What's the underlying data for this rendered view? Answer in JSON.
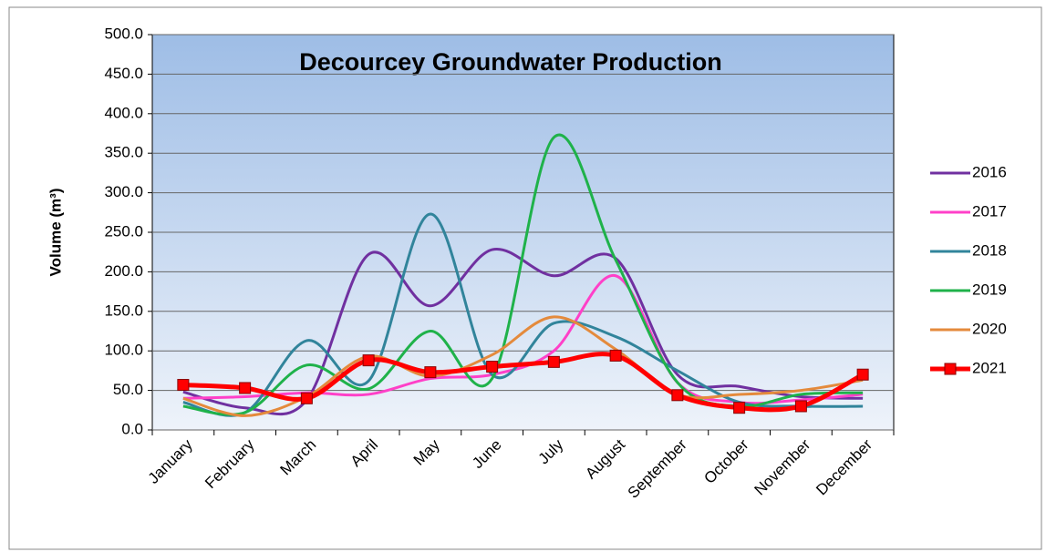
{
  "chart_data": {
    "type": "line",
    "title": "Decourcey Groundwater Production",
    "y_label": "Volume (m³)",
    "categories": [
      "January",
      "February",
      "March",
      "April",
      "May",
      "June",
      "July",
      "August",
      "September",
      "October",
      "November",
      "December"
    ],
    "series": [
      {
        "name": "2016",
        "color": "#7030a0",
        "values": [
          48,
          28,
          38,
          222,
          157,
          228,
          195,
          217,
          70,
          55,
          42,
          40
        ]
      },
      {
        "name": "2017",
        "color": "#ff40c8",
        "values": [
          40,
          42,
          47,
          45,
          65,
          70,
          100,
          195,
          60,
          35,
          38,
          45
        ]
      },
      {
        "name": "2018",
        "color": "#31849b",
        "values": [
          35,
          22,
          113,
          62,
          273,
          70,
          135,
          118,
          75,
          35,
          30,
          30
        ]
      },
      {
        "name": "2019",
        "color": "#1fb24a",
        "values": [
          30,
          22,
          82,
          52,
          125,
          65,
          370,
          215,
          60,
          30,
          45,
          47
        ]
      },
      {
        "name": "2020",
        "color": "#e48a3c",
        "values": [
          40,
          18,
          42,
          93,
          68,
          95,
          143,
          102,
          45,
          45,
          50,
          63
        ]
      },
      {
        "name": "2021",
        "color": "#ff0000",
        "marker": "square",
        "values": [
          57,
          53,
          40,
          88,
          73,
          80,
          86,
          94,
          44,
          28,
          30,
          70
        ]
      }
    ],
    "ylim": [
      0,
      500
    ],
    "yticks": [
      {
        "value": 0,
        "label": "0.0"
      },
      {
        "value": 50,
        "label": "50.0"
      },
      {
        "value": 100,
        "label": "100.0"
      },
      {
        "value": 150,
        "label": "150.0"
      },
      {
        "value": 200,
        "label": "200.0"
      },
      {
        "value": 250,
        "label": "250.0"
      },
      {
        "value": 300,
        "label": "300.0"
      },
      {
        "value": 350,
        "label": "350.0"
      },
      {
        "value": 400,
        "label": "400.0"
      },
      {
        "value": 450,
        "label": "450.0"
      },
      {
        "value": 500,
        "label": "500.0"
      }
    ],
    "grid": true,
    "legend": "right",
    "smooth": true
  }
}
